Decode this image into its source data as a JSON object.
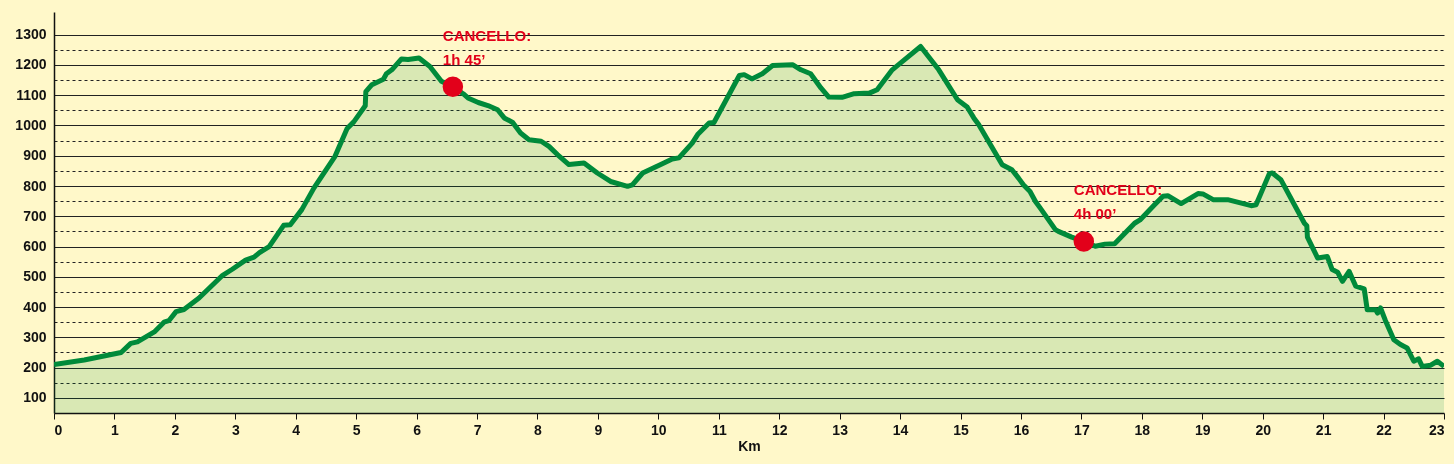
{
  "chart_data": {
    "type": "area",
    "xlabel": "Km",
    "xlim": [
      0,
      23
    ],
    "xticks": [
      0,
      1,
      2,
      3,
      4,
      5,
      6,
      7,
      8,
      9,
      10,
      11,
      12,
      13,
      14,
      15,
      16,
      17,
      18,
      19,
      20,
      21,
      22,
      23
    ],
    "ylim": [
      50,
      1375
    ],
    "yticks": [
      100,
      {
        "value": 150,
        "label": null
      },
      200,
      {
        "value": 250,
        "label": null
      },
      300,
      {
        "value": 350,
        "label": null
      },
      400,
      {
        "value": 450,
        "label": null
      },
      500,
      {
        "value": 550,
        "label": null
      },
      600,
      {
        "value": 650,
        "label": null
      },
      700,
      {
        "value": 750,
        "label": null
      },
      800,
      {
        "value": 850,
        "label": null
      },
      900,
      {
        "value": 950,
        "label": null
      },
      1000,
      {
        "value": 1050,
        "label": null
      },
      1100,
      {
        "value": 1150,
        "label": null
      },
      1200,
      {
        "value": 1250,
        "label": null
      },
      1300
    ],
    "grid": "y",
    "series": [
      {
        "color": "#008a3a",
        "line_style": "solid",
        "marker": "none",
        "x": [
          0,
          0.5,
          1.11,
          1.27,
          1.38,
          1.66,
          1.82,
          1.9,
          2.02,
          2.15,
          2.4,
          2.79,
          2.95,
          3.17,
          3.31,
          3.4,
          3.56,
          3.8,
          3.91,
          4.1,
          4.3,
          4.65,
          4.85,
          4.96,
          5.15,
          5.16,
          5.26,
          5.45,
          5.5,
          5.59,
          5.75,
          5.86,
          6.04,
          6.22,
          6.41,
          6.6,
          6.77,
          6.85,
          7.02,
          7.18,
          7.34,
          7.45,
          7.59,
          7.72,
          7.86,
          8.06,
          8.19,
          8.33,
          8.52,
          8.77,
          8.99,
          9.21,
          9.49,
          9.57,
          9.74,
          10.04,
          10.23,
          10.34,
          10.56,
          10.65,
          10.84,
          10.92,
          11.11,
          11.34,
          11.42,
          11.55,
          11.72,
          11.89,
          12.22,
          12.36,
          12.52,
          12.69,
          12.82,
          13.04,
          13.24,
          13.49,
          13.62,
          13.87,
          14.04,
          14.34,
          14.64,
          14.95,
          15.11,
          15.22,
          15.3,
          15.69,
          15.85,
          15.96,
          16.04,
          16.15,
          16.24,
          16.32,
          16.57,
          16.62,
          16.84,
          17.04,
          17.23,
          17.39,
          17.55,
          17.88,
          17.97,
          18.21,
          18.35,
          18.43,
          18.65,
          18.93,
          19.01,
          19.18,
          19.42,
          19.81,
          19.89,
          20.11,
          20.16,
          20.3,
          20.69,
          20.73,
          20.74,
          20.91,
          21.07,
          21.15,
          21.24,
          21.32,
          21.43,
          21.54,
          21.68,
          21.73,
          21.87,
          21.9,
          21.95,
          22.03,
          22.17,
          22.28,
          22.39,
          22.5,
          22.58,
          22.64,
          22.78,
          22.89,
          23
        ],
        "values": [
          210,
          225,
          250,
          280,
          285,
          318,
          350,
          355,
          385,
          392,
          430,
          505,
          525,
          555,
          565,
          580,
          600,
          670,
          672,
          722,
          793,
          898,
          990,
          1012,
          1065,
          1112,
          1135,
          1153,
          1171,
          1184,
          1220,
          1218,
          1223,
          1195,
          1146,
          1128,
          1105,
          1091,
          1076,
          1066,
          1052,
          1025,
          1010,
          975,
          953,
          948,
          931,
          904,
          871,
          876,
          843,
          815,
          799,
          804,
          843,
          871,
          889,
          893,
          942,
          970,
          1008,
          1010,
          1080,
          1165,
          1168,
          1154,
          1171,
          1198,
          1201,
          1184,
          1171,
          1124,
          1094,
          1093,
          1105,
          1107,
          1118,
          1184,
          1212,
          1261,
          1184,
          1085,
          1061,
          1025,
          1003,
          870,
          854,
          826,
          804,
          782,
          749,
          727,
          656,
          650,
          631,
          617,
          601,
          608,
          609,
          677,
          688,
          738,
          766,
          768,
          742,
          775,
          774,
          755,
          755,
          735,
          738,
          841,
          843,
          821,
          677,
          669,
          631,
          562,
          567,
          524,
          515,
          485,
          518,
          469,
          460,
          391,
          391,
          380,
          397,
          356,
          292,
          276,
          265,
          221,
          229,
          204,
          208,
          221,
          204
        ]
      },
      {
        "type": "scatter",
        "color": "#e2001a",
        "marker": "circle",
        "x": [
          6.6,
          17.04
        ],
        "values": [
          1128,
          617
        ]
      }
    ],
    "annotations": [
      {
        "text": "CANCELLO:\n1h 45’",
        "x": 6.6,
        "y": 1128
      },
      {
        "text": "CANCELLO:\n4h 00’",
        "x": 17.04,
        "y": 617
      }
    ]
  }
}
